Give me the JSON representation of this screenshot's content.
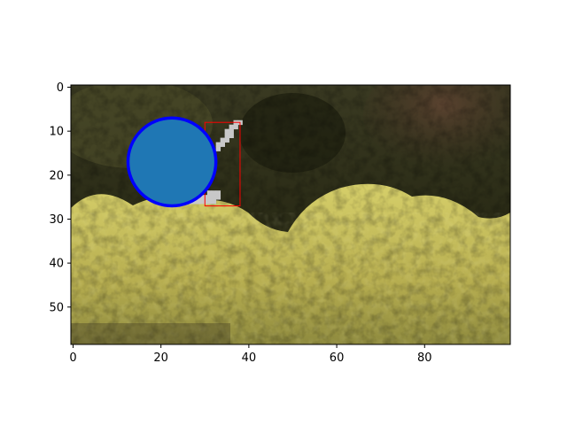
{
  "chart_data": {
    "type": "image",
    "xlim": [
      -0.5,
      99.5
    ],
    "ylim": [
      58.5,
      -0.5
    ],
    "xticks": [
      {
        "value": 0,
        "label": "0"
      },
      {
        "value": 20,
        "label": "20"
      },
      {
        "value": 40,
        "label": "40"
      },
      {
        "value": 60,
        "label": "60"
      },
      {
        "value": 80,
        "label": "80"
      }
    ],
    "yticks": [
      {
        "value": 0,
        "label": "0"
      },
      {
        "value": 10,
        "label": "10"
      },
      {
        "value": 20,
        "label": "20"
      },
      {
        "value": 30,
        "label": "30"
      },
      {
        "value": 40,
        "label": "40"
      },
      {
        "value": 50,
        "label": "50"
      }
    ],
    "rectangle": {
      "x0": 30,
      "y0": 8,
      "x1": 38,
      "y1": 27,
      "color": "#ff0000"
    },
    "circle": {
      "cx": 22.5,
      "cy": 17,
      "r": 10,
      "fill": "#1f77b4",
      "edge": "#0000ff"
    },
    "mask_pixels": [
      [
        37,
        8
      ],
      [
        38,
        8
      ],
      [
        36,
        9
      ],
      [
        37,
        9
      ],
      [
        35,
        10
      ],
      [
        36,
        10
      ],
      [
        35,
        11
      ],
      [
        36,
        11
      ],
      [
        34,
        12
      ],
      [
        35,
        12
      ],
      [
        33,
        13
      ],
      [
        34,
        13
      ],
      [
        33,
        14
      ],
      [
        32,
        15
      ],
      [
        31,
        24
      ],
      [
        32,
        24
      ],
      [
        33,
        24
      ],
      [
        28,
        25
      ],
      [
        29,
        25
      ],
      [
        30,
        25
      ],
      [
        31,
        25
      ],
      [
        32,
        25
      ],
      [
        33,
        25
      ],
      [
        27,
        26
      ],
      [
        28,
        26
      ],
      [
        29,
        26
      ],
      [
        30,
        26
      ],
      [
        31,
        26
      ],
      [
        32,
        26
      ]
    ],
    "colors": {
      "mask": "#c8c8c8",
      "photo_dark": "#2f3018",
      "photo_mid": "#5a5a2c",
      "photo_yellow": "#c9c35a",
      "photo_brown": "#4b3826"
    }
  }
}
